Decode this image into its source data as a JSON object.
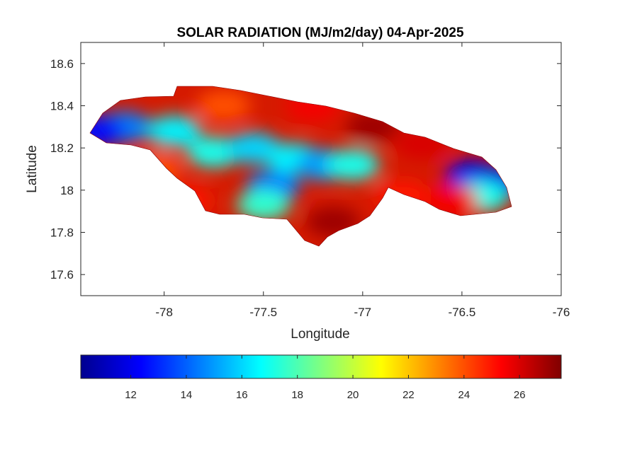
{
  "chart_data": {
    "type": "heatmap",
    "title": "SOLAR RADIATION (MJ/m2/day) 04-Apr-2025",
    "xlabel": "Longitude",
    "ylabel": "Latitude",
    "xlim": [
      -78.42,
      -76
    ],
    "ylim": [
      17.5,
      18.7
    ],
    "x_ticks": [
      "-78",
      "-77.5",
      "-77",
      "-76.5",
      "-76"
    ],
    "x_tick_values": [
      -78,
      -77.5,
      -77,
      -76.5,
      -76
    ],
    "y_ticks": [
      "17.6",
      "17.8",
      "18",
      "18.2",
      "18.4",
      "18.6"
    ],
    "y_tick_values": [
      17.6,
      17.8,
      18.0,
      18.2,
      18.4,
      18.6
    ],
    "colorbar": {
      "colormap": "jet",
      "range": [
        10.2,
        27.5
      ],
      "ticks": [
        "12",
        "14",
        "16",
        "18",
        "20",
        "22",
        "24",
        "26"
      ],
      "tick_values": [
        12,
        14,
        16,
        18,
        20,
        22,
        24,
        26
      ],
      "placement": "bottom (horizontal)"
    },
    "grid": false,
    "region": "Jamaica",
    "patches": [
      {
        "lon": -78.2,
        "lat": 18.3,
        "value": 14.5
      },
      {
        "lon": -78.33,
        "lat": 18.28,
        "value": 12.5
      },
      {
        "lon": -77.95,
        "lat": 18.28,
        "value": 16.5
      },
      {
        "lon": -77.75,
        "lat": 18.18,
        "value": 17.0
      },
      {
        "lon": -77.55,
        "lat": 18.2,
        "value": 16.0
      },
      {
        "lon": -77.35,
        "lat": 18.15,
        "value": 16.5
      },
      {
        "lon": -77.45,
        "lat": 18.02,
        "value": 14.5
      },
      {
        "lon": -77.2,
        "lat": 18.12,
        "value": 15.0
      },
      {
        "lon": -77.05,
        "lat": 18.12,
        "value": 17.0
      },
      {
        "lon": -77.5,
        "lat": 17.93,
        "value": 17.5
      },
      {
        "lon": -76.45,
        "lat": 18.07,
        "value": 12.0
      },
      {
        "lon": -76.32,
        "lat": 18.04,
        "value": 12.0
      },
      {
        "lon": -76.4,
        "lat": 17.97,
        "value": 17.0
      },
      {
        "lon": -76.95,
        "lat": 18.3,
        "value": 27.0
      },
      {
        "lon": -76.7,
        "lat": 18.22,
        "value": 26.0
      },
      {
        "lon": -77.25,
        "lat": 18.4,
        "value": 25.5
      },
      {
        "lon": -77.15,
        "lat": 17.85,
        "value": 27.0
      },
      {
        "lon": -77.9,
        "lat": 17.95,
        "value": 25.0
      },
      {
        "lon": -77.7,
        "lat": 18.4,
        "value": 24.0
      },
      {
        "lon": -76.8,
        "lat": 17.97,
        "value": 25.0
      },
      {
        "lon": -78.05,
        "lat": 18.1,
        "value": 24.0
      },
      {
        "lon": -76.55,
        "lat": 17.95,
        "value": 25.5
      }
    ]
  }
}
